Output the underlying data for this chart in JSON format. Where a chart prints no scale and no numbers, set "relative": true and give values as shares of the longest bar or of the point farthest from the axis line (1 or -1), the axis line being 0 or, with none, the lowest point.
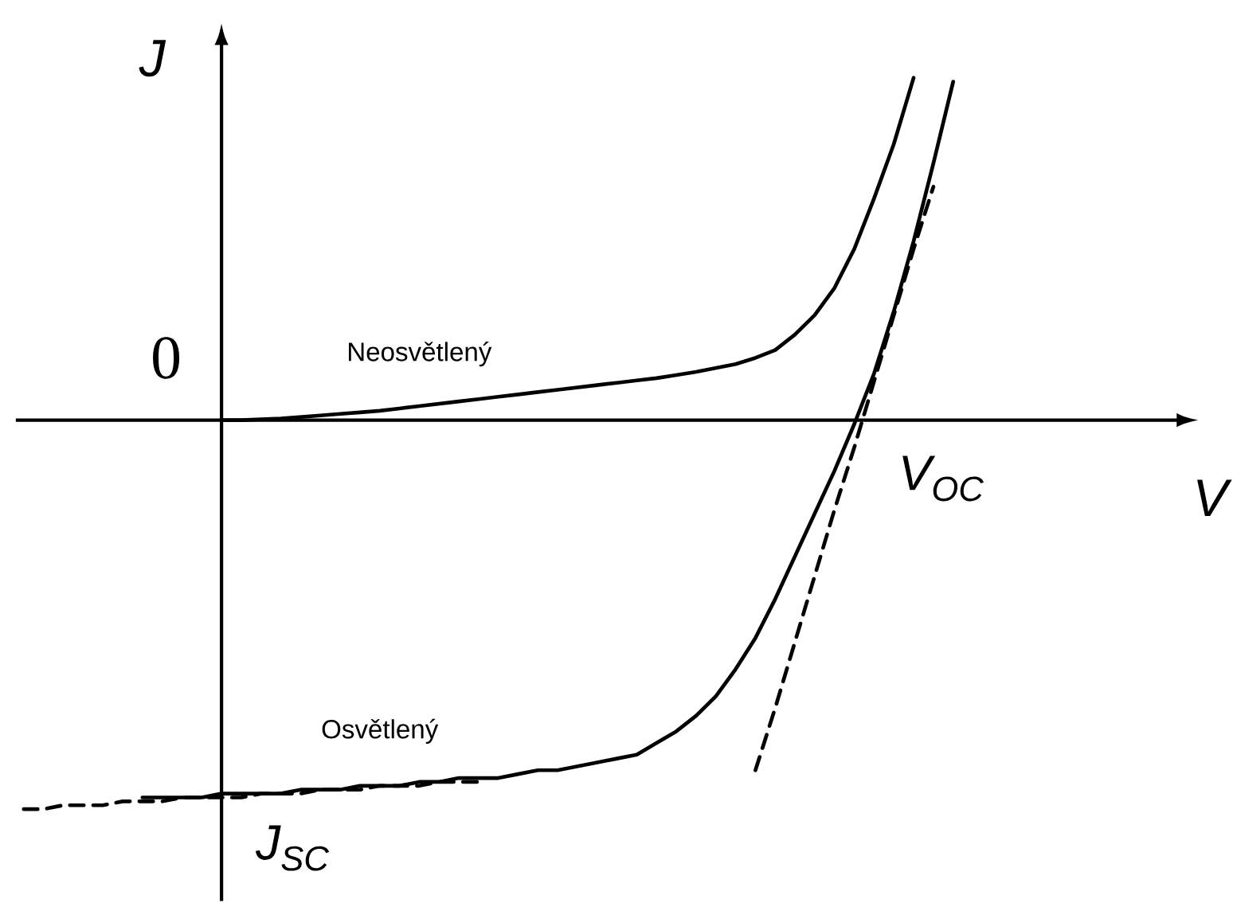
{
  "chart_data": {
    "type": "line",
    "relative": true,
    "xlabel": "V",
    "ylabel": "J",
    "categories": [
      null,
      null,
      null,
      null,
      null,
      null,
      null,
      null,
      null,
      null,
      null,
      null,
      null,
      null,
      null,
      null,
      null,
      null,
      null,
      null,
      null,
      null,
      null,
      null,
      null,
      null,
      null,
      null,
      null,
      null,
      null,
      null,
      null,
      null,
      null,
      null,
      null,
      null,
      null,
      null,
      null,
      null,
      null,
      null,
      null,
      null,
      null,
      null,
      null
    ],
    "series": [
      {
        "name": "Neosvětlený",
        "color": "#000000",
        "values": [
          null,
          null,
          null,
          null,
          null,
          null,
          null,
          null,
          null,
          null,
          0,
          0,
          0.002,
          0.004,
          0.008,
          0.012,
          0.016,
          0.02,
          0.024,
          0.03,
          0.036,
          0.042,
          0.048,
          0.054,
          0.06,
          0.066,
          0.072,
          0.078,
          0.084,
          0.09,
          0.096,
          0.102,
          0.108,
          0.116,
          0.124,
          0.134,
          0.144,
          0.16,
          0.18,
          0.22,
          0.27,
          0.34,
          0.44,
          0.57,
          0.71,
          0.88,
          null,
          null,
          null
        ]
      },
      {
        "name": "Osvětlený",
        "color": "#000000",
        "values": [
          null,
          null,
          null,
          null,
          null,
          null,
          -0.97,
          -0.97,
          -0.97,
          -0.97,
          -0.96,
          -0.96,
          -0.96,
          -0.96,
          -0.95,
          -0.95,
          -0.95,
          -0.94,
          -0.94,
          -0.94,
          -0.93,
          -0.93,
          -0.92,
          -0.92,
          -0.92,
          -0.91,
          -0.9,
          -0.9,
          -0.89,
          -0.88,
          -0.87,
          -0.86,
          -0.83,
          -0.8,
          -0.76,
          -0.71,
          -0.64,
          -0.56,
          -0.46,
          -0.35,
          -0.24,
          -0.13,
          -0.01,
          0.12,
          0.28,
          0.46,
          0.66,
          0.87,
          null
        ]
      },
      {
        "color": "#000000",
        "line_style": "dashed",
        "values": [
          -1.0,
          -1.0,
          -0.99,
          -0.99,
          -0.99,
          -0.98,
          -0.98,
          -0.98,
          -0.97,
          -0.97,
          -0.97,
          -0.97,
          -0.96,
          -0.96,
          -0.96,
          -0.95,
          -0.95,
          -0.95,
          -0.94,
          -0.94,
          -0.94,
          -0.93,
          -0.93,
          -0.93,
          null,
          null,
          null,
          null,
          null,
          null,
          null,
          null,
          null,
          null,
          null,
          null,
          null,
          null,
          null,
          null,
          null,
          null,
          null,
          null,
          null,
          null,
          null,
          null,
          null
        ]
      },
      {
        "color": "#000000",
        "line_style": "dashed",
        "values": [
          null,
          null,
          null,
          null,
          null,
          null,
          null,
          null,
          null,
          null,
          null,
          null,
          null,
          null,
          null,
          null,
          null,
          null,
          null,
          null,
          null,
          null,
          null,
          null,
          null,
          null,
          null,
          null,
          null,
          null,
          null,
          null,
          null,
          null,
          null,
          null,
          null,
          -0.9,
          -0.74,
          -0.57,
          -0.4,
          -0.23,
          -0.07,
          0.1,
          0.27,
          0.44,
          0.6,
          null,
          null
        ]
      }
    ],
    "annotations": [
      "0",
      "V$_{OC}$",
      "J$_{SC}$"
    ]
  }
}
